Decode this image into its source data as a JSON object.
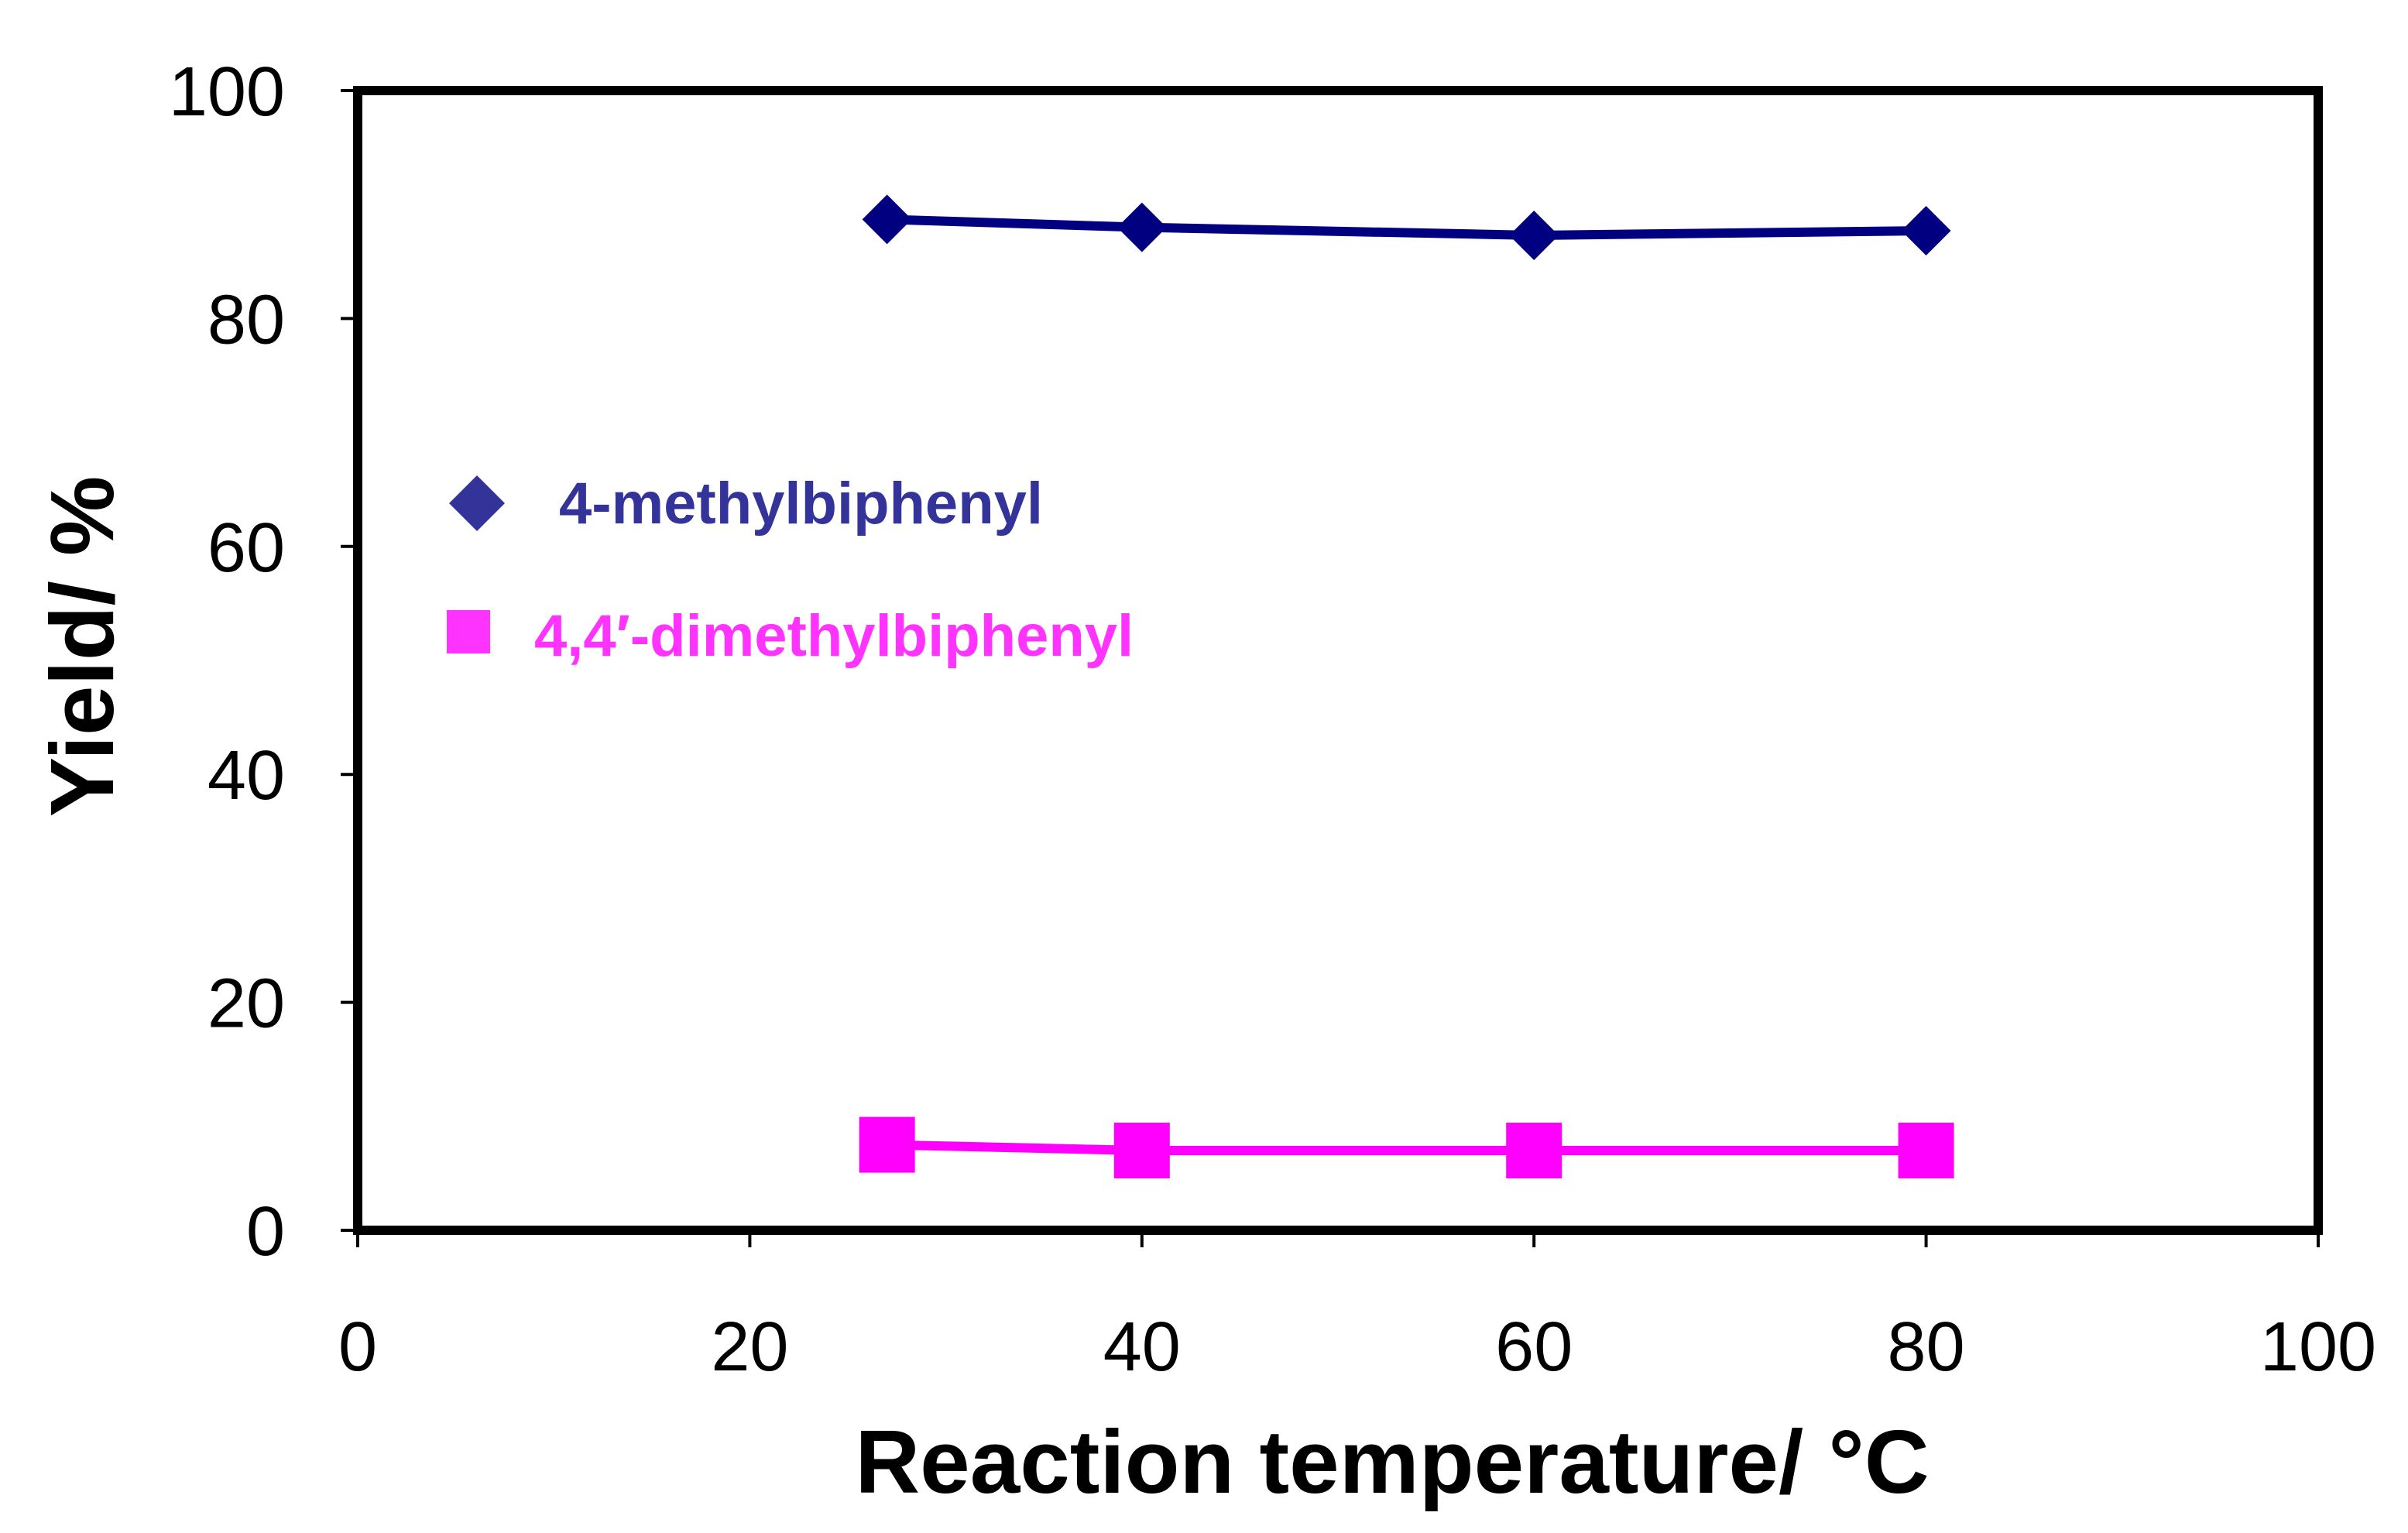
{
  "chart_data": {
    "type": "line",
    "xlabel": "Reaction temperature/ °C",
    "ylabel": "Yield/ %",
    "xlim": [
      0,
      100
    ],
    "ylim": [
      0,
      100
    ],
    "xticks": [
      0,
      20,
      40,
      60,
      80,
      100
    ],
    "yticks": [
      0,
      20,
      40,
      60,
      80,
      100
    ],
    "x": [
      27,
      40,
      60,
      80
    ],
    "grid": false,
    "legend_position": "left-middle",
    "series": [
      {
        "name": "4-methylbiphenyl",
        "values": [
          88.7,
          88.0,
          87.3,
          87.7
        ],
        "marker": "diamond",
        "color": "#000080",
        "legend_color": "#333399"
      },
      {
        "name": "4,4′-dimethylbiphenyl",
        "values": [
          7.5,
          7.0,
          7.0,
          7.0
        ],
        "marker": "square",
        "color": "#ff00ff",
        "legend_color": "#ff33ff"
      }
    ]
  }
}
